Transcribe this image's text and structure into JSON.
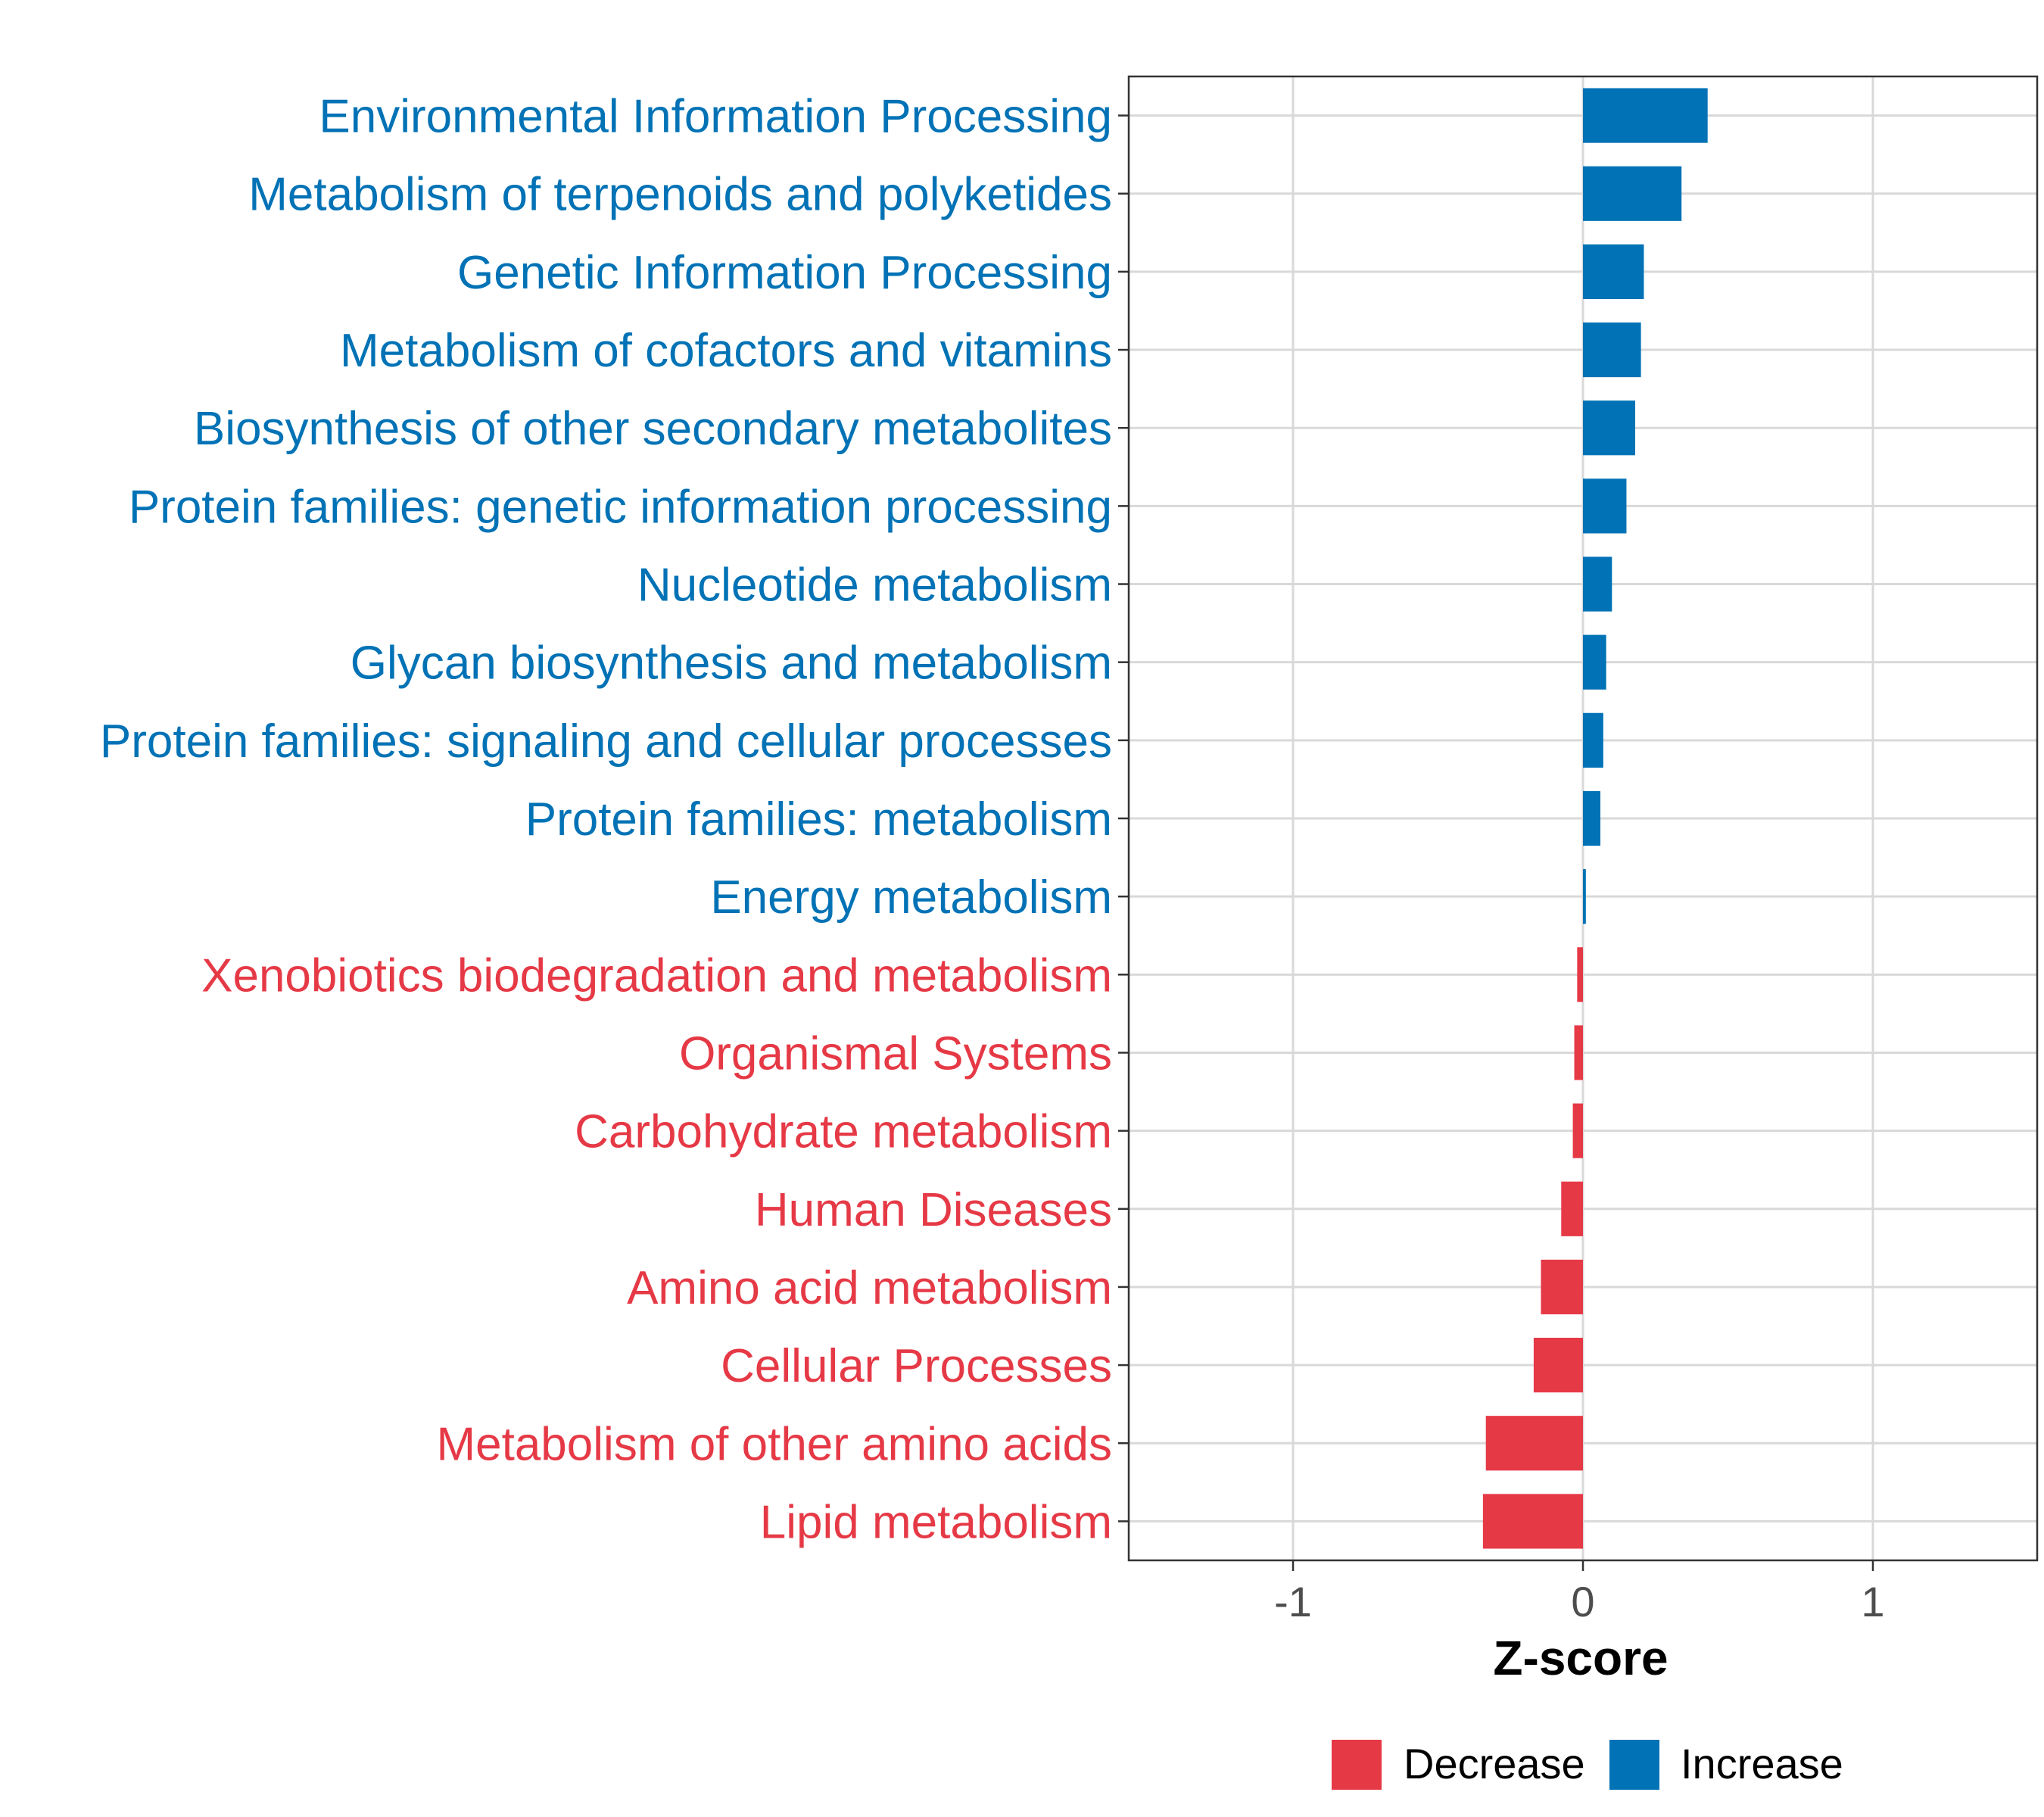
{
  "colors": {
    "decrease": "#E63946",
    "increase": "#0072B5",
    "grid": "#D9D9D9",
    "panel_border": "#333333",
    "tick_text": "#4D4D4D",
    "axis_title": "#000000"
  },
  "chart_data": {
    "type": "bar",
    "orientation": "horizontal",
    "title": "",
    "xlabel": "Z-score",
    "ylabel": "",
    "xlim": [
      -1.5667,
      1.5667
    ],
    "xticks": [
      -1,
      0,
      1
    ],
    "xtick_labels": [
      "-1",
      "0",
      "1"
    ],
    "grid": true,
    "legend": {
      "position": "bottom",
      "items": [
        {
          "label": "Decrease",
          "color": "#E63946"
        },
        {
          "label": "Increase",
          "color": "#0072B5"
        }
      ]
    },
    "categories": [
      "Environmental Information Processing",
      "Metabolism of terpenoids and polyketides",
      "Genetic Information Processing",
      "Metabolism of cofactors and vitamins",
      "Biosynthesis of other secondary metabolites",
      "Protein families: genetic information processing",
      "Nucleotide metabolism",
      "Glycan biosynthesis and metabolism",
      "Protein families: signaling and cellular processes",
      "Protein families: metabolism",
      "Energy metabolism",
      "Xenobiotics biodegradation and metabolism",
      "Organismal Systems",
      "Carbohydrate metabolism",
      "Human Diseases",
      "Amino acid metabolism",
      "Cellular Processes",
      "Metabolism of other amino acids",
      "Lipid metabolism"
    ],
    "values": [
      0.43,
      0.34,
      0.21,
      0.2,
      0.18,
      0.15,
      0.1,
      0.08,
      0.07,
      0.06,
      0.01,
      -0.02,
      -0.03,
      -0.035,
      -0.075,
      -0.145,
      -0.17,
      -0.335,
      -0.345
    ],
    "groups": [
      "Increase",
      "Increase",
      "Increase",
      "Increase",
      "Increase",
      "Increase",
      "Increase",
      "Increase",
      "Increase",
      "Increase",
      "Increase",
      "Decrease",
      "Decrease",
      "Decrease",
      "Decrease",
      "Decrease",
      "Decrease",
      "Decrease",
      "Decrease"
    ]
  }
}
